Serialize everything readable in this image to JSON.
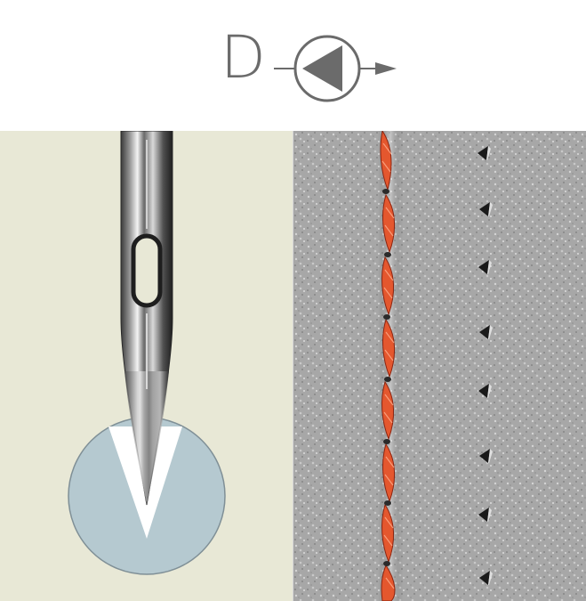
{
  "point_code": "D",
  "colors": {
    "symbol_gray": "#6b6b6b",
    "panel_left_bg": "#e8e8d6",
    "cross_section_fill": "#b5c9d0",
    "thread": "#e4572e",
    "leather": "#a9a9a9"
  },
  "icons": {
    "point_symbol": "triangle-point-arrow-icon"
  }
}
